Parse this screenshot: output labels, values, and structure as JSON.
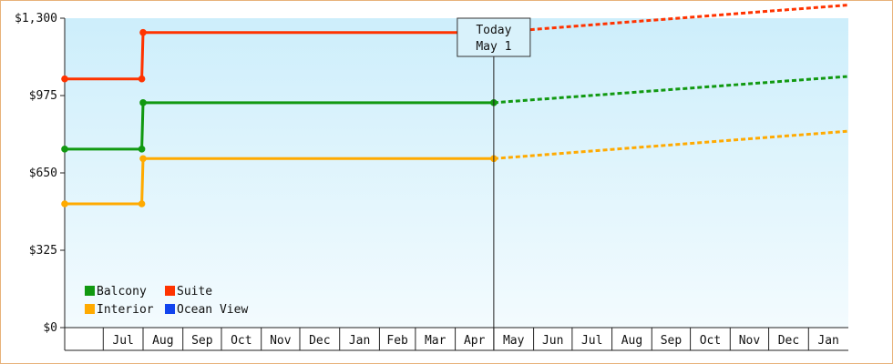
{
  "chart_data": {
    "type": "line",
    "title": "",
    "xlabel": "",
    "ylabel": "",
    "ylim": [
      0,
      1300
    ],
    "y_ticks": [
      {
        "value": 0,
        "label": "$0"
      },
      {
        "value": 325,
        "label": "$325"
      },
      {
        "value": 650,
        "label": "$650"
      },
      {
        "value": 975,
        "label": "$975"
      },
      {
        "value": 1300,
        "label": "$1,300"
      }
    ],
    "x_range": [
      "2025-06-01",
      "2027-01-31"
    ],
    "x_months": [
      {
        "label": "Jul",
        "start": "2025-07-01",
        "end": "2025-07-31"
      },
      {
        "label": "Aug",
        "start": "2025-08-01",
        "end": "2025-08-31"
      },
      {
        "label": "Sep",
        "start": "2025-09-01",
        "end": "2025-09-30"
      },
      {
        "label": "Oct",
        "start": "2025-10-01",
        "end": "2025-10-31"
      },
      {
        "label": "Nov",
        "start": "2025-11-01",
        "end": "2025-11-30"
      },
      {
        "label": "Dec",
        "start": "2025-12-01",
        "end": "2025-12-31"
      },
      {
        "label": "Jan",
        "start": "2026-01-01",
        "end": "2026-01-31"
      },
      {
        "label": "Feb",
        "start": "2026-02-01",
        "end": "2026-02-28"
      },
      {
        "label": "Mar",
        "start": "2026-03-01",
        "end": "2026-03-31"
      },
      {
        "label": "Apr",
        "start": "2026-04-01",
        "end": "2026-04-30"
      },
      {
        "label": "May",
        "start": "2026-05-01",
        "end": "2026-05-31"
      },
      {
        "label": "Jun",
        "start": "2026-06-01",
        "end": "2026-06-30"
      },
      {
        "label": "Jul",
        "start": "2026-07-01",
        "end": "2026-07-31"
      },
      {
        "label": "Aug",
        "start": "2026-08-01",
        "end": "2026-08-31"
      },
      {
        "label": "Sep",
        "start": "2026-09-01",
        "end": "2026-09-30"
      },
      {
        "label": "Oct",
        "start": "2026-10-01",
        "end": "2026-10-31"
      },
      {
        "label": "Nov",
        "start": "2026-11-01",
        "end": "2026-11-30"
      },
      {
        "label": "Dec",
        "start": "2026-12-01",
        "end": "2026-12-31"
      },
      {
        "label": "Jan",
        "start": "2027-01-01",
        "end": "2027-01-31"
      }
    ],
    "today": {
      "date": "2026-05-01",
      "label_line1": "Today",
      "label_line2": "May 1"
    },
    "legend_position": "bottom-left",
    "grid": false,
    "series": [
      {
        "name": "Balcony",
        "color": "#119911",
        "history": [
          {
            "x": "2025-06-01",
            "y": 750
          },
          {
            "x": "2025-07-31",
            "y": 750
          },
          {
            "x": "2025-08-01",
            "y": 945
          },
          {
            "x": "2026-05-01",
            "y": 945
          }
        ],
        "forecast": [
          {
            "x": "2026-05-01",
            "y": 945
          },
          {
            "x": "2027-01-31",
            "y": 1055
          }
        ]
      },
      {
        "name": "Suite",
        "color": "#ff3300",
        "history": [
          {
            "x": "2025-06-01",
            "y": 1045
          },
          {
            "x": "2025-07-31",
            "y": 1045
          },
          {
            "x": "2025-08-01",
            "y": 1240
          },
          {
            "x": "2026-05-01",
            "y": 1240
          }
        ],
        "forecast": [
          {
            "x": "2026-05-01",
            "y": 1240
          },
          {
            "x": "2027-01-31",
            "y": 1355
          }
        ]
      },
      {
        "name": "Interior",
        "color": "#ffaa00",
        "history": [
          {
            "x": "2025-06-01",
            "y": 520
          },
          {
            "x": "2025-07-31",
            "y": 520
          },
          {
            "x": "2025-08-01",
            "y": 710
          },
          {
            "x": "2026-05-01",
            "y": 710
          }
        ],
        "forecast": [
          {
            "x": "2026-05-01",
            "y": 710
          },
          {
            "x": "2027-01-31",
            "y": 825
          }
        ]
      },
      {
        "name": "Ocean View",
        "color": "#1144ee",
        "history": [],
        "forecast": []
      }
    ]
  }
}
